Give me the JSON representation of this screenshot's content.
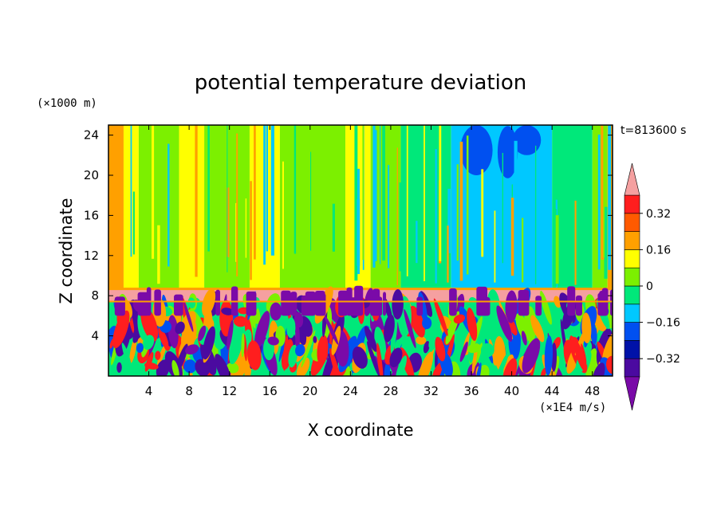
{
  "chart_data": {
    "type": "heatmap",
    "title": "potential temperature deviation",
    "xlabel": "X coordinate",
    "ylabel": "Z coordinate",
    "x_unit": "(×1E4 m/s)",
    "y_unit": "(×1000 m)",
    "time_label": "t=813600 s",
    "xlim": [
      0,
      50
    ],
    "ylim": [
      0,
      25
    ],
    "x_ticks": [
      4,
      8,
      12,
      16,
      20,
      24,
      28,
      32,
      36,
      40,
      44,
      48
    ],
    "y_ticks": [
      4,
      8,
      12,
      16,
      20,
      24
    ],
    "colorbar": {
      "levels": [
        -0.48,
        -0.4,
        -0.32,
        -0.24,
        -0.16,
        -0.08,
        0,
        0.08,
        0.16,
        0.24,
        0.32,
        0.4
      ],
      "tick_labels": [
        "0.32",
        "0.16",
        "0",
        "−0.16",
        "−0.32"
      ],
      "tick_values": [
        0.32,
        0.16,
        0,
        -0.16,
        -0.32
      ],
      "colors": [
        "#7a0aa8",
        "#4b0aa0",
        "#0012a8",
        "#0050f0",
        "#00c8ff",
        "#00e87a",
        "#7cf000",
        "#ffff00",
        "#ffa000",
        "#ff5a00",
        "#ff1e1e",
        "#f5a0a0"
      ]
    },
    "upper_layer_columns": [
      {
        "x": [
          0,
          1.5
        ],
        "value": 0.2
      },
      {
        "x": [
          1.5,
          3
        ],
        "value": 0.12
      },
      {
        "x": [
          3,
          7
        ],
        "value": 0.02
      },
      {
        "x": [
          7,
          9.5
        ],
        "value": 0.12
      },
      {
        "x": [
          9.5,
          14
        ],
        "value": 0.02
      },
      {
        "x": [
          14,
          17
        ],
        "value": 0.12
      },
      {
        "x": [
          17,
          23.5
        ],
        "value": 0.02
      },
      {
        "x": [
          23.5,
          26
        ],
        "value": 0.12
      },
      {
        "x": [
          26,
          29
        ],
        "value": 0.02
      },
      {
        "x": [
          29,
          34
        ],
        "value": -0.06
      },
      {
        "x": [
          34,
          44
        ],
        "value": -0.1
      },
      {
        "x": [
          44,
          48
        ],
        "value": -0.06
      },
      {
        "x": [
          48,
          49.5
        ],
        "value": 0.02
      },
      {
        "x": [
          49.5,
          50
        ],
        "value": 0.2
      }
    ],
    "inversion_layer": {
      "z": [
        7.5,
        8.7
      ],
      "value": 0.44
    },
    "lower_layer": {
      "z": [
        0,
        7.5
      ],
      "description_values": [
        -0.44,
        -0.36,
        -0.2,
        -0.04,
        0.04,
        0.2,
        0.36
      ]
    }
  }
}
